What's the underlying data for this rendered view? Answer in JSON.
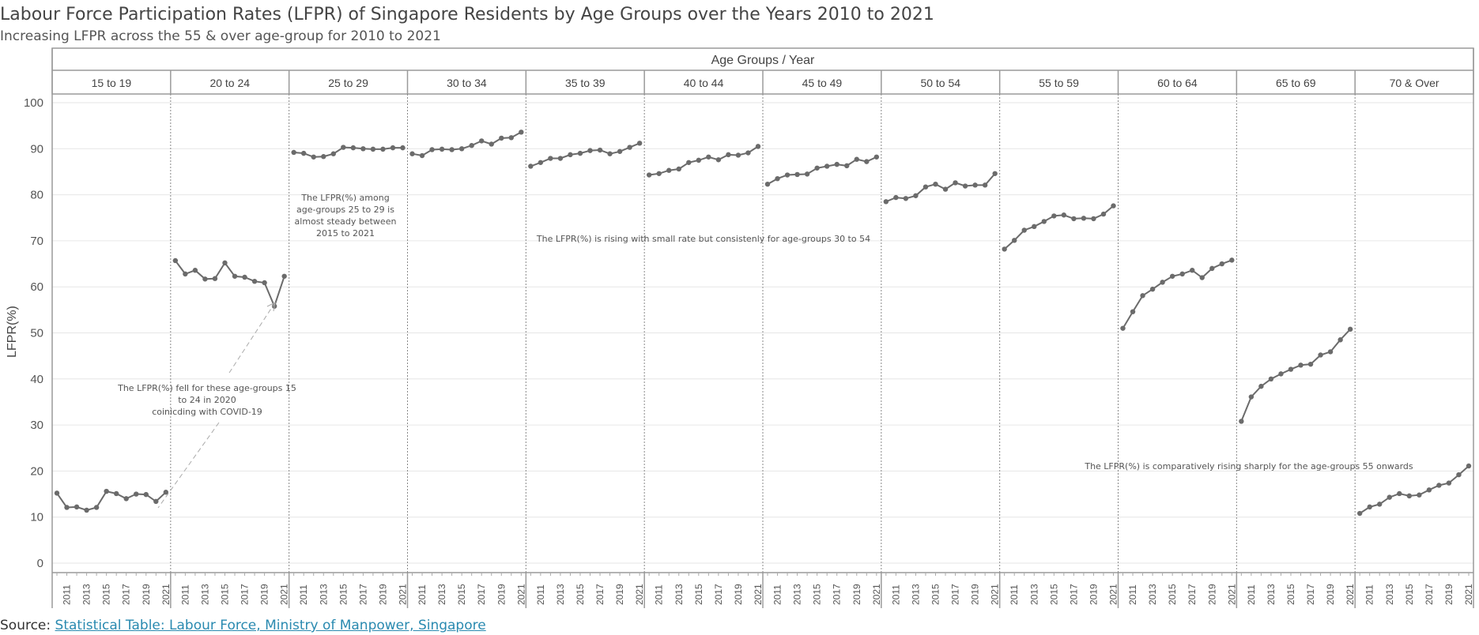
{
  "title": "Labour Force Participation Rates (LFPR) of Singapore Residents by Age Groups over the Years 2010 to 2021",
  "subtitle": "Increasing LFPR across the 55 & over age-group for 2010 to 2021",
  "source": {
    "prefix": "Source: ",
    "link_text": "Statistical Table: Labour Force, Ministry of Manpower, Singapore"
  },
  "chart_data": {
    "type": "line",
    "header_title": "Age Groups  /  Year",
    "ylabel": "LFPR(%)",
    "ylim": [
      0,
      100
    ],
    "yticks": [
      0,
      10,
      20,
      30,
      40,
      50,
      60,
      70,
      80,
      90,
      100
    ],
    "x": [
      2010,
      2011,
      2012,
      2013,
      2014,
      2015,
      2016,
      2017,
      2018,
      2019,
      2020,
      2021
    ],
    "x_tick_labels": [
      "2011",
      "2013",
      "2015",
      "2017",
      "2019",
      "2021"
    ],
    "grid": true,
    "series": [
      {
        "name": "15 to 19",
        "values": [
          15.2,
          12.1,
          12.2,
          11.5,
          12.1,
          15.6,
          15.1,
          14.0,
          15.0,
          14.9,
          13.4,
          15.4
        ]
      },
      {
        "name": "20 to 24",
        "values": [
          65.7,
          62.8,
          63.6,
          61.7,
          61.8,
          65.2,
          62.3,
          62.1,
          61.2,
          60.9,
          55.8,
          62.3
        ]
      },
      {
        "name": "25 to 29",
        "values": [
          89.2,
          89.0,
          88.2,
          88.3,
          88.9,
          90.3,
          90.2,
          90.0,
          89.9,
          89.9,
          90.2,
          90.2
        ]
      },
      {
        "name": "30 to 34",
        "values": [
          88.9,
          88.5,
          89.8,
          89.9,
          89.8,
          90.0,
          90.7,
          91.7,
          91.0,
          92.3,
          92.4,
          93.6
        ]
      },
      {
        "name": "35 to 39",
        "values": [
          86.2,
          87.0,
          87.9,
          87.9,
          88.7,
          89.0,
          89.6,
          89.7,
          88.9,
          89.4,
          90.3,
          91.2
        ]
      },
      {
        "name": "40 to 44",
        "values": [
          84.3,
          84.6,
          85.3,
          85.6,
          87.0,
          87.5,
          88.2,
          87.6,
          88.7,
          88.6,
          89.1,
          90.5
        ]
      },
      {
        "name": "45 to 49",
        "values": [
          82.3,
          83.5,
          84.3,
          84.4,
          84.5,
          85.8,
          86.2,
          86.6,
          86.3,
          87.7,
          87.2,
          88.2
        ]
      },
      {
        "name": "50 to 54",
        "values": [
          78.5,
          79.4,
          79.2,
          79.8,
          81.7,
          82.3,
          81.2,
          82.6,
          81.9,
          82.1,
          82.1,
          84.6
        ]
      },
      {
        "name": "55 to 59",
        "values": [
          68.2,
          70.1,
          72.3,
          73.1,
          74.2,
          75.4,
          75.6,
          74.8,
          74.9,
          74.8,
          75.8,
          77.6
        ]
      },
      {
        "name": "60 to 64",
        "values": [
          51.0,
          54.6,
          58.1,
          59.5,
          61.0,
          62.3,
          62.8,
          63.6,
          62.0,
          64.0,
          65.0,
          65.8
        ]
      },
      {
        "name": "65 to 69",
        "values": [
          30.8,
          36.1,
          38.4,
          40.0,
          41.1,
          42.1,
          43.0,
          43.2,
          45.2,
          45.9,
          48.5,
          50.8
        ]
      },
      {
        "name": "70 & Over",
        "values": [
          10.8,
          12.2,
          12.8,
          14.3,
          15.1,
          14.6,
          14.8,
          15.9,
          16.9,
          17.4,
          19.2,
          21.1
        ]
      }
    ],
    "annotations": [
      {
        "text": "The LFPR(%) fell for these age-groups 15 to 24 in 2020 coinicding with COVID-19",
        "lines": [
          "The LFPR(%) fell for these age-groups 15",
          "to 24 in 2020",
          "coinicding with COVID-19"
        ]
      },
      {
        "text": "The LFPR(%) among age-groups 25 to 29 is almost steady between 2015 to 2021",
        "lines": [
          "The LFPR(%) among",
          "age-groups 25 to 29 is",
          "almost steady between",
          "2015 to 2021"
        ]
      },
      {
        "text": "The LFPR(%) is rising with small rate but consistenly for age-groups 30 to 54",
        "lines": [
          "The LFPR(%) is rising with small rate but consistenly for age-groups 30 to 54"
        ]
      },
      {
        "text": "The LFPR(%) is comparatively rising sharply for the age-groups 55 onwards",
        "lines": [
          "The LFPR(%) is comparatively rising sharply for the age-groups 55 onwards"
        ]
      }
    ],
    "colors": {
      "line": "#6b6b6b",
      "grid": "#e6e6e6",
      "border": "#9a9a9a",
      "link": "#2a8ab0"
    }
  }
}
